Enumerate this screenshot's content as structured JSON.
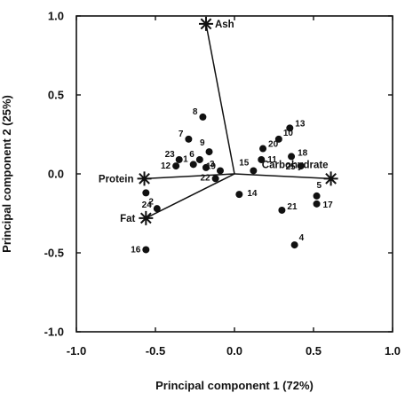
{
  "chart_data": {
    "type": "scatter",
    "title": "",
    "xlabel": "Principal component 1 (72%)",
    "ylabel": "Principal component 2 (25%)",
    "xlim": [
      -1.0,
      1.0
    ],
    "ylim": [
      -1.0,
      1.0
    ],
    "x_ticks": [
      "-1.0",
      "-0.5",
      "0.0",
      "0.5",
      "1.0"
    ],
    "y_ticks": [
      "1.0",
      "0.5",
      "0.0",
      "-0.5",
      "-1.0"
    ],
    "grid": false,
    "vectors": [
      {
        "label": "Ash",
        "x": -0.18,
        "y": 0.95
      },
      {
        "label": "Protein",
        "x": -0.57,
        "y": -0.03
      },
      {
        "label": "Fat",
        "x": -0.56,
        "y": -0.28
      },
      {
        "label": "Carbohydrate",
        "x": 0.61,
        "y": -0.03
      }
    ],
    "points": [
      {
        "label": "1",
        "x": -0.26,
        "y": 0.06
      },
      {
        "label": "2",
        "x": -0.56,
        "y": -0.12
      },
      {
        "label": "3",
        "x": -0.18,
        "y": 0.04
      },
      {
        "label": "4",
        "x": 0.38,
        "y": -0.45
      },
      {
        "label": "5",
        "x": 0.52,
        "y": -0.14
      },
      {
        "label": "6",
        "x": -0.22,
        "y": 0.09
      },
      {
        "label": "7",
        "x": -0.29,
        "y": 0.22
      },
      {
        "label": "8",
        "x": -0.2,
        "y": 0.36
      },
      {
        "label": "9",
        "x": -0.16,
        "y": 0.14
      },
      {
        "label": "10",
        "x": 0.28,
        "y": 0.22
      },
      {
        "label": "11",
        "x": 0.17,
        "y": 0.09
      },
      {
        "label": "12",
        "x": -0.37,
        "y": 0.05
      },
      {
        "label": "13",
        "x": 0.35,
        "y": 0.29
      },
      {
        "label": "14",
        "x": 0.03,
        "y": -0.13
      },
      {
        "label": "15",
        "x": 0.12,
        "y": 0.02
      },
      {
        "label": "16",
        "x": -0.56,
        "y": -0.48
      },
      {
        "label": "17",
        "x": 0.52,
        "y": -0.19
      },
      {
        "label": "18",
        "x": 0.36,
        "y": 0.11
      },
      {
        "label": "19",
        "x": -0.09,
        "y": 0.02
      },
      {
        "label": "20",
        "x": 0.18,
        "y": 0.16
      },
      {
        "label": "21",
        "x": 0.3,
        "y": -0.23
      },
      {
        "label": "22",
        "x": -0.12,
        "y": -0.03
      },
      {
        "label": "23",
        "x": -0.35,
        "y": 0.09
      },
      {
        "label": "24",
        "x": -0.49,
        "y": -0.22
      },
      {
        "label": "25",
        "x": 0.42,
        "y": 0.05
      }
    ]
  }
}
